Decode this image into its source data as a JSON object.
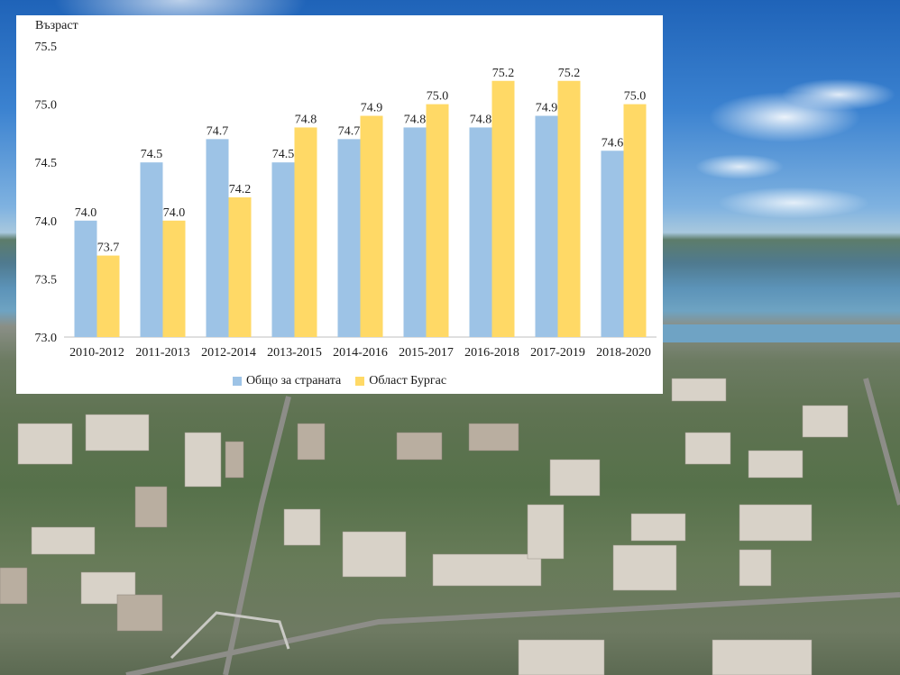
{
  "chart_data": {
    "type": "bar",
    "title": "",
    "ylabel": "Възраст",
    "xlabel": "",
    "ylim": [
      73.0,
      75.5
    ],
    "yticks": [
      73.0,
      73.5,
      74.0,
      74.5,
      75.0,
      75.5
    ],
    "ytick_labels": [
      "73.0",
      "73.5",
      "74.0",
      "74.5",
      "75.0",
      "75.5"
    ],
    "grid": false,
    "legend_position": "bottom",
    "categories": [
      "2010-2012",
      "2011-2013",
      "2012-2014",
      "2013-2015",
      "2014-2016",
      "2015-2017",
      "2016-2018",
      "2017-2019",
      "2018-2020"
    ],
    "series": [
      {
        "name": "Общо за страната",
        "color": "#9dc3e6",
        "values": [
          74.0,
          74.5,
          74.7,
          74.5,
          74.7,
          74.8,
          74.8,
          74.9,
          74.6
        ],
        "labels": [
          "74.0",
          "74.5",
          "74.7",
          "74.5",
          "74.7",
          "74.8",
          "74.8",
          "74.9",
          "74.6"
        ]
      },
      {
        "name": "Област Бургас",
        "color": "#ffd966",
        "values": [
          73.7,
          74.0,
          74.2,
          74.8,
          74.9,
          75.0,
          75.2,
          75.2,
          75.0
        ],
        "labels": [
          "73.7",
          "74.0",
          "74.2",
          "74.8",
          "74.9",
          "75.0",
          "75.2",
          "75.2",
          "75.0"
        ]
      }
    ]
  }
}
